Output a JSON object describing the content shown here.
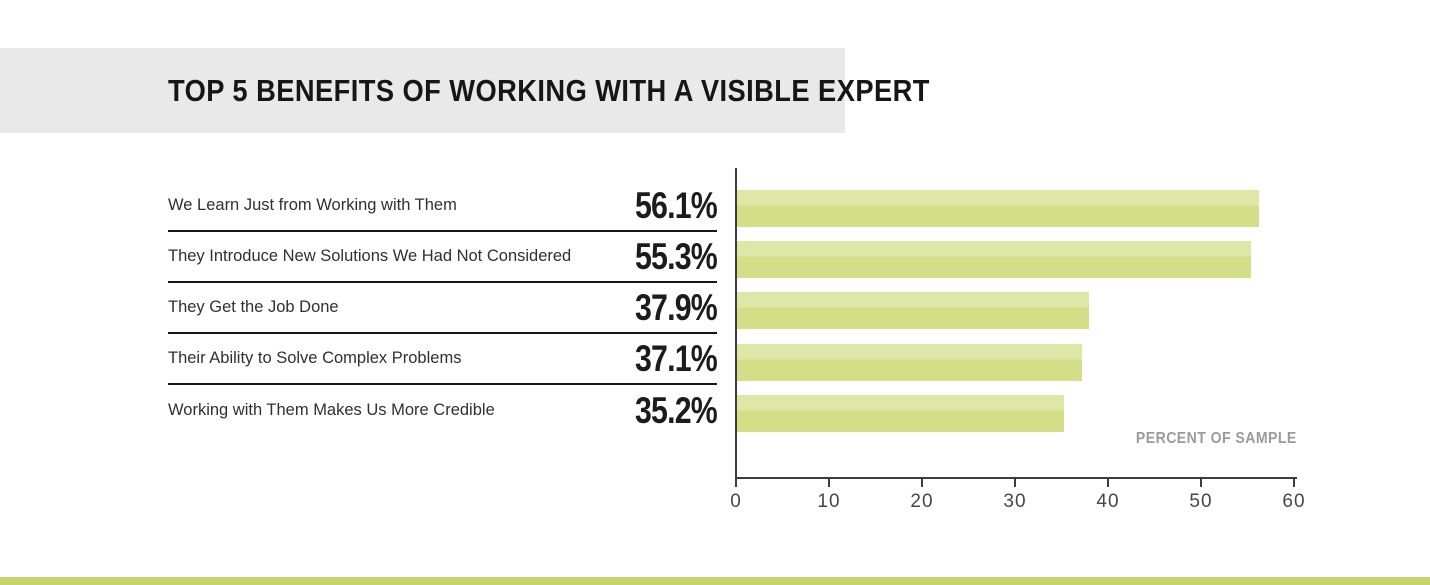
{
  "title": "TOP 5 BENEFITS OF WORKING WITH A VISIBLE EXPERT",
  "chart_data": {
    "type": "bar",
    "orientation": "horizontal",
    "title": "TOP 5 BENEFITS OF WORKING WITH A VISIBLE EXPERT",
    "categories": [
      "We Learn Just from Working with Them",
      "They Introduce New Solutions We Had Not Considered",
      "They Get the Job Done",
      "Their Ability to Solve Complex Problems",
      "Working with Them Makes Us More Credible"
    ],
    "values": [
      56.1,
      55.3,
      37.9,
      37.1,
      35.2
    ],
    "value_labels": [
      "56.1%",
      "55.3%",
      "37.9%",
      "37.1%",
      "35.2%"
    ],
    "xlabel": "PERCENT OF SAMPLE",
    "ylabel": "",
    "xlim": [
      0,
      60
    ],
    "xticks": [
      0,
      10,
      20,
      30,
      40,
      50,
      60
    ],
    "grid": false,
    "legend": false,
    "bar_color": "#d3de87",
    "bar_highlight_color": "#dee8a6"
  },
  "colors": {
    "banner_bg": "#e9e9e9",
    "accent_strip": "#c7d36d",
    "axis": "#3d3d3d",
    "row_line": "#161616"
  }
}
